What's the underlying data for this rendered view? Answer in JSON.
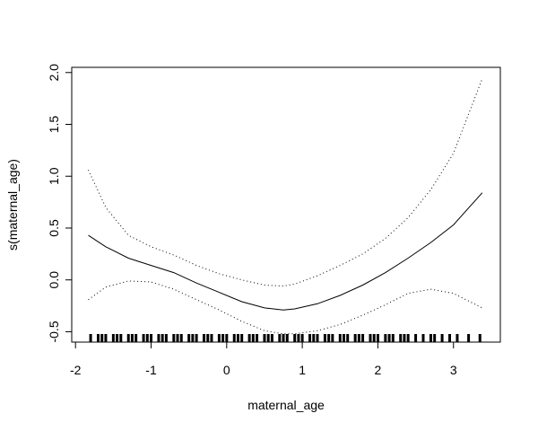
{
  "chart_data": {
    "type": "line",
    "title": "",
    "xlabel": "maternal_age",
    "ylabel": "s(maternal_age)",
    "xlim": [
      -2.05,
      3.62
    ],
    "ylim": [
      -0.6,
      2.05
    ],
    "x_ticks": [
      -2,
      -1,
      0,
      1,
      2,
      3
    ],
    "x_tick_labels": [
      "-2",
      "-1",
      "0",
      "1",
      "2",
      "3"
    ],
    "y_ticks": [
      -0.5,
      0.0,
      0.5,
      1.0,
      1.5,
      2.0
    ],
    "y_tick_labels": [
      "-0.5",
      "0.0",
      "0.5",
      "1.0",
      "1.5",
      "2.0"
    ],
    "grid": false,
    "series": [
      {
        "style": "solid",
        "x": [
          -1.83,
          -1.6,
          -1.3,
          -1.0,
          -0.7,
          -0.4,
          -0.1,
          0.2,
          0.5,
          0.75,
          0.9,
          1.2,
          1.5,
          1.8,
          2.1,
          2.4,
          2.7,
          3.0,
          3.38
        ],
        "y": [
          0.43,
          0.32,
          0.21,
          0.14,
          0.07,
          -0.03,
          -0.12,
          -0.21,
          -0.27,
          -0.29,
          -0.28,
          -0.23,
          -0.15,
          -0.05,
          0.07,
          0.21,
          0.36,
          0.53,
          0.84
        ]
      },
      {
        "style": "dotted",
        "x": [
          -1.83,
          -1.6,
          -1.3,
          -1.0,
          -0.7,
          -0.4,
          -0.1,
          0.2,
          0.5,
          0.75,
          0.9,
          1.2,
          1.5,
          1.8,
          2.1,
          2.4,
          2.7,
          3.0,
          3.38
        ],
        "y": [
          1.06,
          0.7,
          0.43,
          0.32,
          0.24,
          0.14,
          0.06,
          0.0,
          -0.05,
          -0.06,
          -0.04,
          0.04,
          0.14,
          0.25,
          0.4,
          0.6,
          0.87,
          1.22,
          1.94
        ]
      },
      {
        "style": "dotted",
        "x": [
          -1.83,
          -1.6,
          -1.3,
          -1.0,
          -0.7,
          -0.4,
          -0.1,
          0.2,
          0.5,
          0.75,
          0.9,
          1.2,
          1.5,
          1.8,
          2.1,
          2.4,
          2.7,
          3.0,
          3.38
        ],
        "y": [
          -0.19,
          -0.07,
          -0.01,
          -0.02,
          -0.09,
          -0.19,
          -0.29,
          -0.4,
          -0.49,
          -0.52,
          -0.52,
          -0.49,
          -0.43,
          -0.34,
          -0.24,
          -0.13,
          -0.09,
          -0.13,
          -0.27
        ]
      }
    ],
    "rug": [
      -1.8,
      -1.7,
      -1.65,
      -1.6,
      -1.5,
      -1.45,
      -1.4,
      -1.3,
      -1.25,
      -1.2,
      -1.1,
      -1.05,
      -1.0,
      -0.9,
      -0.85,
      -0.8,
      -0.7,
      -0.65,
      -0.6,
      -0.5,
      -0.45,
      -0.4,
      -0.3,
      -0.25,
      -0.2,
      -0.1,
      -0.05,
      0.0,
      0.1,
      0.15,
      0.2,
      0.3,
      0.35,
      0.4,
      0.5,
      0.55,
      0.6,
      0.7,
      0.75,
      0.8,
      0.9,
      0.95,
      1.0,
      1.1,
      1.15,
      1.2,
      1.3,
      1.35,
      1.4,
      1.5,
      1.55,
      1.6,
      1.7,
      1.75,
      1.8,
      1.9,
      1.95,
      2.0,
      2.1,
      2.15,
      2.2,
      2.3,
      2.35,
      2.4,
      2.5,
      2.6,
      2.7,
      2.75,
      2.85,
      2.95,
      3.05,
      3.2,
      3.35
    ]
  }
}
